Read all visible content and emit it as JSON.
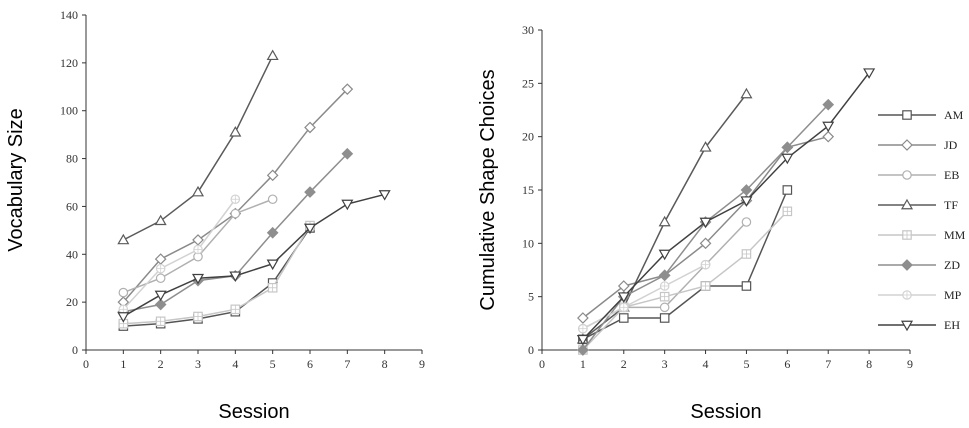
{
  "chart_data": [
    {
      "type": "line",
      "title": "",
      "xlabel": "Session",
      "ylabel": "Vocabulary Size",
      "xlim": [
        0,
        9
      ],
      "ylim": [
        0,
        140
      ],
      "xticks": [
        0,
        1,
        2,
        3,
        4,
        5,
        6,
        7,
        8,
        9
      ],
      "yticks": [
        0,
        20,
        40,
        60,
        80,
        100,
        120,
        140
      ],
      "series": [
        {
          "name": "AM",
          "x": [
            1,
            2,
            3,
            4,
            5,
            6
          ],
          "values": [
            10,
            11,
            13,
            16,
            28,
            51
          ]
        },
        {
          "name": "JD",
          "x": [
            1,
            2,
            3,
            4,
            5,
            6,
            7
          ],
          "values": [
            20,
            38,
            46,
            57,
            73,
            93,
            109
          ]
        },
        {
          "name": "EB",
          "x": [
            1,
            2,
            3,
            4,
            5
          ],
          "values": [
            24,
            30,
            39,
            57,
            63
          ]
        },
        {
          "name": "TF",
          "x": [
            1,
            2,
            3,
            4,
            5
          ],
          "values": [
            46,
            54,
            66,
            91,
            123
          ]
        },
        {
          "name": "MM",
          "x": [
            1,
            2,
            3,
            4,
            5,
            6
          ],
          "values": [
            11,
            12,
            14,
            17,
            26,
            52
          ]
        },
        {
          "name": "ZD",
          "x": [
            1,
            2,
            3,
            4,
            5,
            6,
            7
          ],
          "values": [
            16,
            19,
            29,
            31,
            49,
            66,
            82
          ]
        },
        {
          "name": "MP",
          "x": [
            1,
            2,
            3,
            4
          ],
          "values": [
            17,
            34,
            42,
            63
          ]
        },
        {
          "name": "EH",
          "x": [
            1,
            2,
            3,
            4,
            5,
            6,
            7,
            8
          ],
          "values": [
            14,
            23,
            30,
            31,
            36,
            51,
            61,
            65
          ]
        }
      ]
    },
    {
      "type": "line",
      "title": "",
      "xlabel": "Session",
      "ylabel": "Cumulative Shape Choices",
      "xlim": [
        0,
        9
      ],
      "ylim": [
        0,
        30
      ],
      "xticks": [
        0,
        1,
        2,
        3,
        4,
        5,
        6,
        7,
        8,
        9
      ],
      "yticks": [
        0,
        5,
        10,
        15,
        20,
        25,
        30
      ],
      "legend": "right",
      "series": [
        {
          "name": "AM",
          "x": [
            1,
            2,
            3,
            4,
            5,
            6
          ],
          "values": [
            1,
            3,
            3,
            6,
            6,
            15
          ]
        },
        {
          "name": "JD",
          "x": [
            1,
            2,
            3,
            4,
            5,
            6,
            7
          ],
          "values": [
            3,
            6,
            7,
            10,
            14,
            19,
            20
          ]
        },
        {
          "name": "EB",
          "x": [
            1,
            2,
            3,
            4,
            5
          ],
          "values": [
            2,
            4,
            4,
            8,
            12
          ]
        },
        {
          "name": "TF",
          "x": [
            1,
            2,
            3,
            4,
            5
          ],
          "values": [
            1,
            4,
            12,
            19,
            24
          ]
        },
        {
          "name": "MM",
          "x": [
            1,
            2,
            3,
            4,
            5,
            6
          ],
          "values": [
            0,
            4,
            5,
            6,
            9,
            13
          ]
        },
        {
          "name": "ZD",
          "x": [
            1,
            2,
            3,
            4,
            5,
            6,
            7
          ],
          "values": [
            0,
            5,
            7,
            12,
            15,
            19,
            23
          ]
        },
        {
          "name": "MP",
          "x": [
            1,
            2,
            3,
            4
          ],
          "values": [
            2,
            4,
            6,
            8
          ]
        },
        {
          "name": "EH",
          "x": [
            1,
            2,
            3,
            4,
            5,
            6,
            7,
            8
          ],
          "values": [
            1,
            5,
            9,
            12,
            14,
            18,
            21,
            26
          ]
        }
      ]
    }
  ],
  "legend_styles": {
    "AM": {
      "color": "#555555",
      "marker": "square"
    },
    "JD": {
      "color": "#8a8a8a",
      "marker": "diamond"
    },
    "EB": {
      "color": "#b0b0b0",
      "marker": "circle"
    },
    "TF": {
      "color": "#5a5a5a",
      "marker": "triangle-up"
    },
    "MM": {
      "color": "#c6c6c6",
      "marker": "square-plus"
    },
    "ZD": {
      "color": "#8e8e8e",
      "marker": "diamond-filled"
    },
    "MP": {
      "color": "#d2d2d2",
      "marker": "circle-plus"
    },
    "EH": {
      "color": "#404040",
      "marker": "triangle-down"
    }
  }
}
